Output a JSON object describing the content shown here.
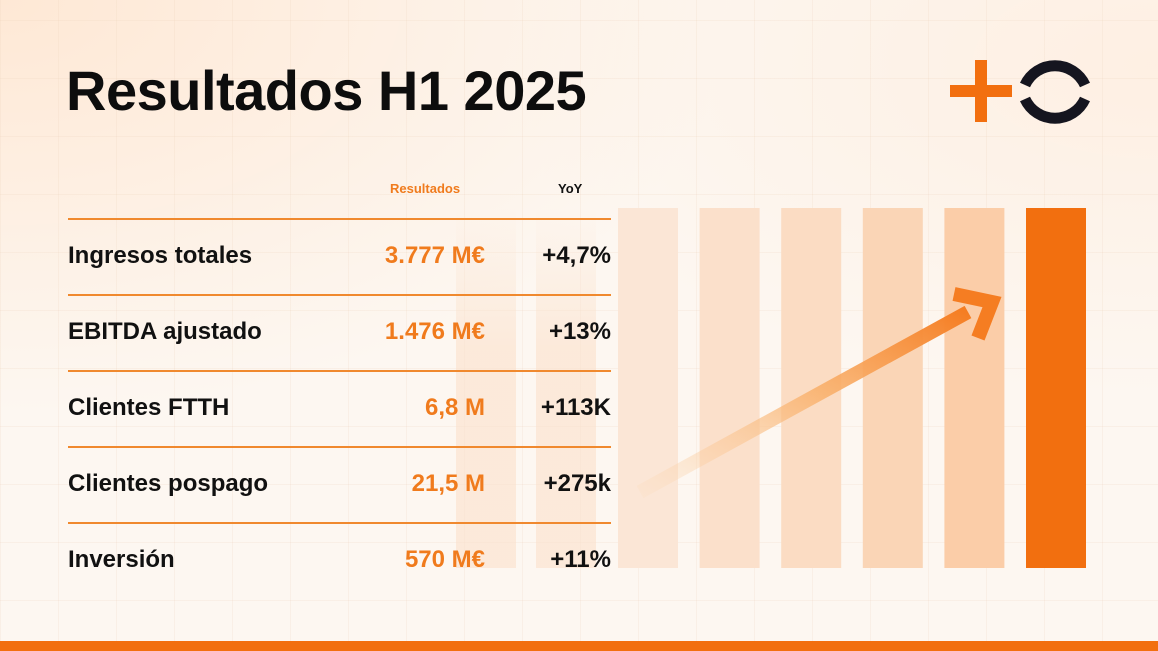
{
  "title": "Resultados H1 2025",
  "columns": {
    "results": "Resultados",
    "yoy": "YoY"
  },
  "rows": [
    {
      "label": "Ingresos totales",
      "value": "3.777 M€",
      "yoy": "+4,7%"
    },
    {
      "label": "EBITDA ajustado",
      "value": "1.476 M€",
      "yoy": "+13%"
    },
    {
      "label": "Clientes FTTH",
      "value": "6,8 M",
      "yoy": "+113K"
    },
    {
      "label": "Clientes pospago",
      "value": "21,5 M",
      "yoy": "+275k"
    },
    {
      "label": "Inversión",
      "value": "570 M€",
      "yoy": "+11%"
    }
  ],
  "decor_bars": [
    {
      "fill": "#fbe6d6"
    },
    {
      "fill": "#fbe0cb"
    },
    {
      "fill": "#fbdcc3"
    },
    {
      "fill": "#fad5b6"
    },
    {
      "fill": "#fbcda8"
    },
    {
      "fill": "#f26f0f"
    }
  ],
  "colors": {
    "accent": "#f26f0f",
    "accent_text": "#f07b1d",
    "title": "#0d0d0d",
    "logo_ring": "#15151f"
  },
  "icons": {
    "logo": "plus-o-logo",
    "trend": "up-right-arrow-icon"
  }
}
